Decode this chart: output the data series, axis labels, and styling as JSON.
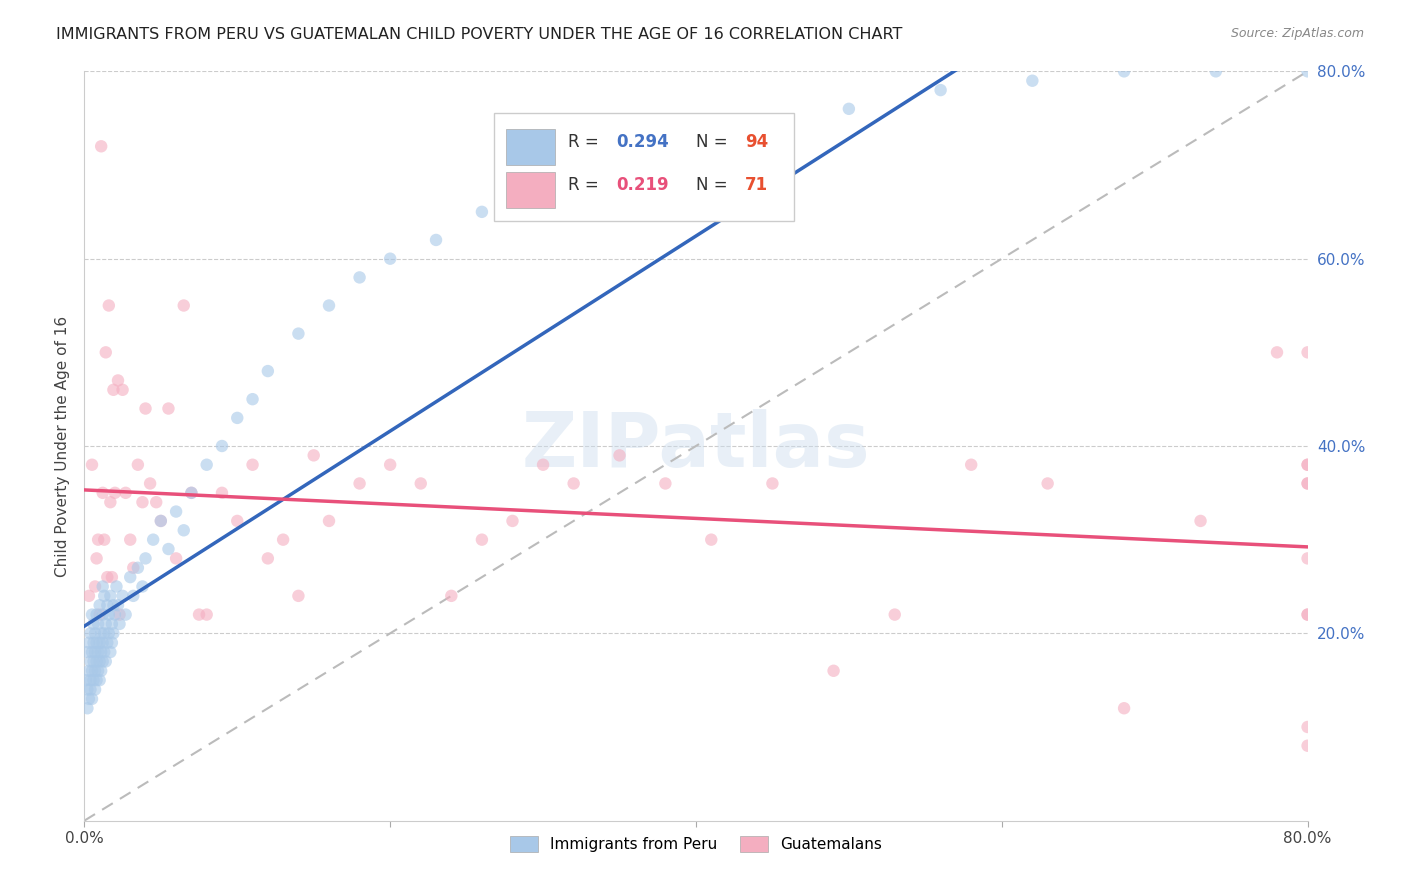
{
  "title": "IMMIGRANTS FROM PERU VS GUATEMALAN CHILD POVERTY UNDER THE AGE OF 16 CORRELATION CHART",
  "source": "Source: ZipAtlas.com",
  "ylabel": "Child Poverty Under the Age of 16",
  "xlim": [
    0.0,
    0.8
  ],
  "ylim": [
    0.0,
    0.8
  ],
  "blue_R": "0.294",
  "blue_N": "94",
  "pink_R": "0.219",
  "pink_N": "71",
  "blue_color": "#a8c8e8",
  "pink_color": "#f4aec0",
  "blue_line_color": "#3366bb",
  "pink_line_color": "#e8507a",
  "ref_line_color": "#bbbbbb",
  "legend_label_blue": "Immigrants from Peru",
  "legend_label_pink": "Guatemalans",
  "marker_size": 80,
  "marker_alpha": 0.6,
  "blue_x": [
    0.001,
    0.002,
    0.002,
    0.002,
    0.003,
    0.003,
    0.003,
    0.004,
    0.004,
    0.004,
    0.004,
    0.005,
    0.005,
    0.005,
    0.005,
    0.006,
    0.006,
    0.006,
    0.006,
    0.007,
    0.007,
    0.007,
    0.007,
    0.008,
    0.008,
    0.008,
    0.008,
    0.009,
    0.009,
    0.009,
    0.01,
    0.01,
    0.01,
    0.01,
    0.011,
    0.011,
    0.011,
    0.012,
    0.012,
    0.012,
    0.012,
    0.013,
    0.013,
    0.013,
    0.014,
    0.014,
    0.015,
    0.015,
    0.016,
    0.016,
    0.017,
    0.017,
    0.018,
    0.018,
    0.019,
    0.019,
    0.02,
    0.021,
    0.022,
    0.023,
    0.025,
    0.027,
    0.03,
    0.032,
    0.035,
    0.038,
    0.04,
    0.045,
    0.05,
    0.055,
    0.06,
    0.065,
    0.07,
    0.08,
    0.09,
    0.1,
    0.11,
    0.12,
    0.14,
    0.16,
    0.18,
    0.2,
    0.23,
    0.26,
    0.3,
    0.34,
    0.4,
    0.45,
    0.5,
    0.56,
    0.62,
    0.68,
    0.74,
    0.8
  ],
  "blue_y": [
    0.15,
    0.18,
    0.14,
    0.12,
    0.16,
    0.19,
    0.13,
    0.17,
    0.2,
    0.15,
    0.14,
    0.18,
    0.16,
    0.22,
    0.13,
    0.19,
    0.17,
    0.15,
    0.21,
    0.18,
    0.16,
    0.14,
    0.2,
    0.17,
    0.19,
    0.15,
    0.22,
    0.18,
    0.16,
    0.21,
    0.19,
    0.17,
    0.23,
    0.15,
    0.2,
    0.18,
    0.16,
    0.22,
    0.19,
    0.17,
    0.25,
    0.2,
    0.18,
    0.24,
    0.21,
    0.17,
    0.23,
    0.19,
    0.22,
    0.2,
    0.18,
    0.24,
    0.21,
    0.19,
    0.23,
    0.2,
    0.22,
    0.25,
    0.23,
    0.21,
    0.24,
    0.22,
    0.26,
    0.24,
    0.27,
    0.25,
    0.28,
    0.3,
    0.32,
    0.29,
    0.33,
    0.31,
    0.35,
    0.38,
    0.4,
    0.43,
    0.45,
    0.48,
    0.52,
    0.55,
    0.58,
    0.6,
    0.62,
    0.65,
    0.68,
    0.7,
    0.72,
    0.74,
    0.76,
    0.78,
    0.79,
    0.8,
    0.8,
    0.8
  ],
  "pink_x": [
    0.003,
    0.005,
    0.007,
    0.008,
    0.009,
    0.01,
    0.011,
    0.012,
    0.013,
    0.014,
    0.015,
    0.016,
    0.017,
    0.018,
    0.019,
    0.02,
    0.022,
    0.023,
    0.025,
    0.027,
    0.03,
    0.032,
    0.035,
    0.038,
    0.04,
    0.043,
    0.047,
    0.05,
    0.055,
    0.06,
    0.065,
    0.07,
    0.075,
    0.08,
    0.09,
    0.1,
    0.11,
    0.12,
    0.13,
    0.14,
    0.15,
    0.16,
    0.18,
    0.2,
    0.22,
    0.24,
    0.26,
    0.28,
    0.3,
    0.32,
    0.35,
    0.38,
    0.41,
    0.45,
    0.49,
    0.53,
    0.58,
    0.63,
    0.68,
    0.73,
    0.78,
    0.8,
    0.8,
    0.8,
    0.8,
    0.8,
    0.8,
    0.8,
    0.8,
    0.8,
    0.8
  ],
  "pink_y": [
    0.24,
    0.38,
    0.25,
    0.28,
    0.3,
    0.22,
    0.72,
    0.35,
    0.3,
    0.5,
    0.26,
    0.55,
    0.34,
    0.26,
    0.46,
    0.35,
    0.47,
    0.22,
    0.46,
    0.35,
    0.3,
    0.27,
    0.38,
    0.34,
    0.44,
    0.36,
    0.34,
    0.32,
    0.44,
    0.28,
    0.55,
    0.35,
    0.22,
    0.22,
    0.35,
    0.32,
    0.38,
    0.28,
    0.3,
    0.24,
    0.39,
    0.32,
    0.36,
    0.38,
    0.36,
    0.24,
    0.3,
    0.32,
    0.38,
    0.36,
    0.39,
    0.36,
    0.3,
    0.36,
    0.16,
    0.22,
    0.38,
    0.36,
    0.12,
    0.32,
    0.5,
    0.28,
    0.36,
    0.22,
    0.1,
    0.38,
    0.36,
    0.38,
    0.22,
    0.5,
    0.08
  ]
}
